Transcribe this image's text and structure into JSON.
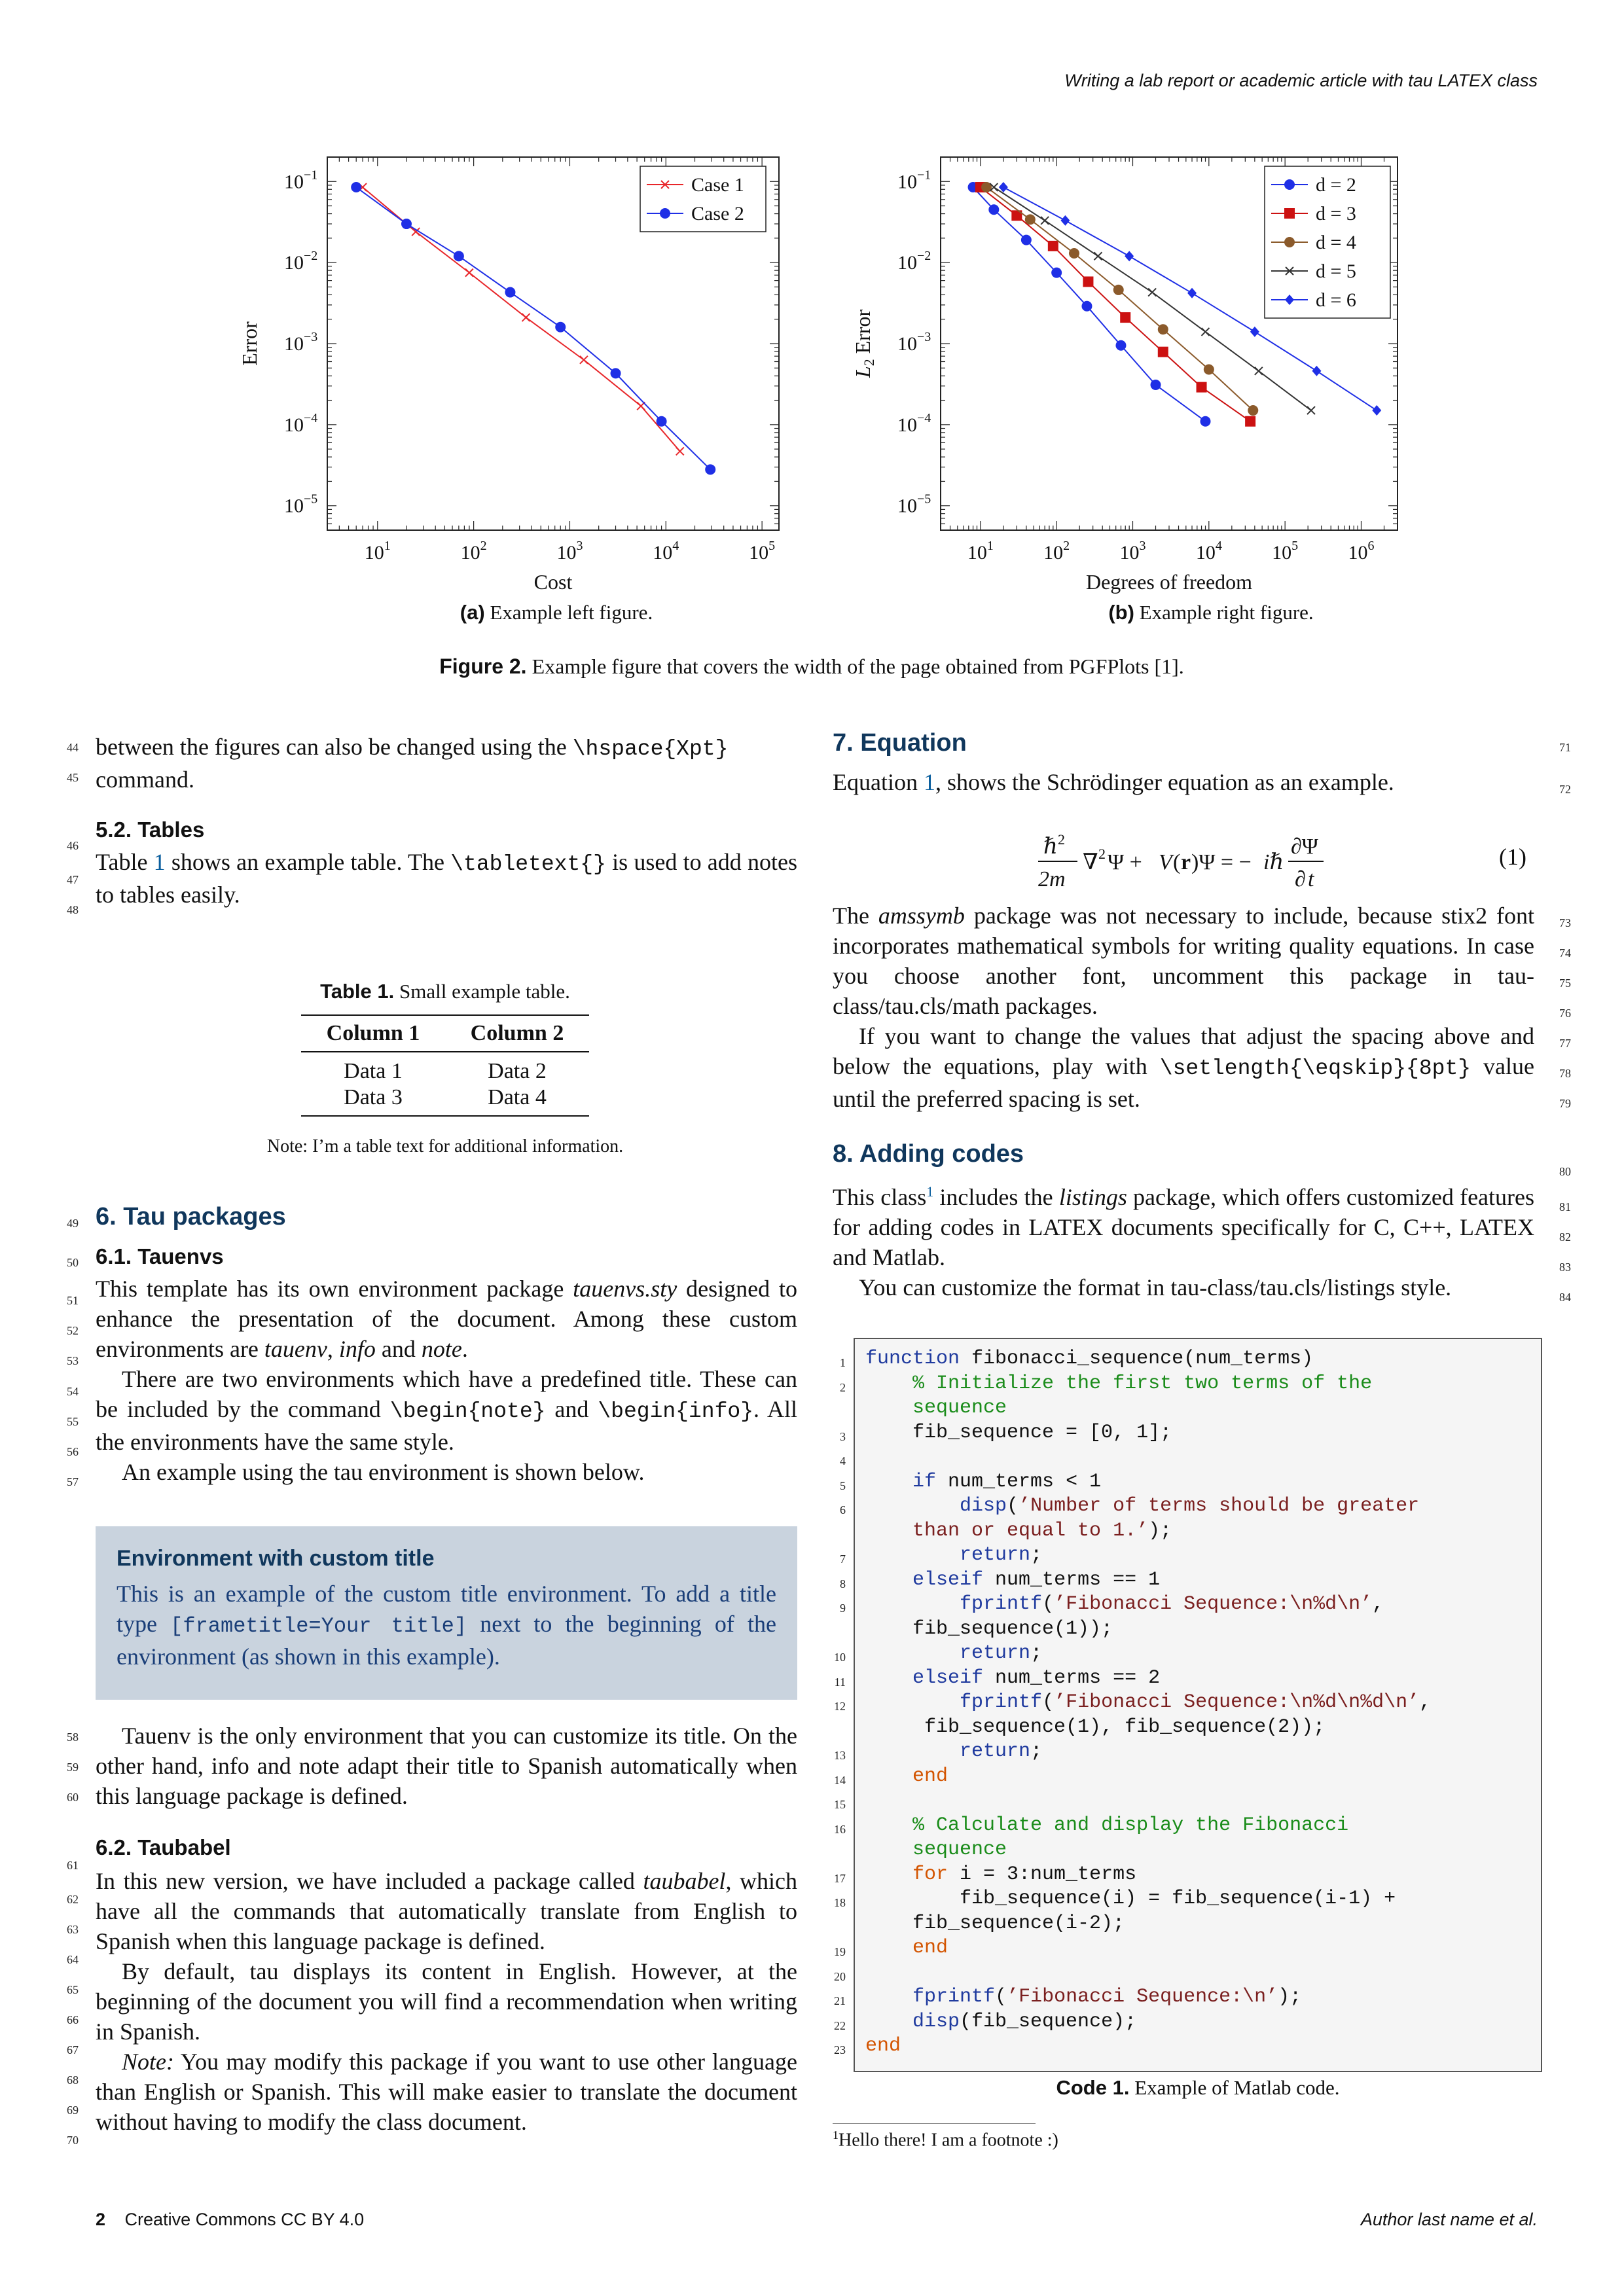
{
  "header": {
    "running_title": "Writing a lab report or academic article with tau LATEX class"
  },
  "figure": {
    "left": {
      "ylabel": "Error",
      "xlabel": "Cost",
      "ytick_labels": [
        "10",
        "10",
        "10",
        "10",
        "10"
      ],
      "ytick_exps": [
        "−1",
        "−2",
        "−3",
        "−4",
        "−5"
      ],
      "xtick_labels": [
        "10",
        "10",
        "10",
        "10",
        "10"
      ],
      "xtick_exps": [
        "1",
        "2",
        "3",
        "4",
        "5"
      ],
      "legend": [
        "Case 1",
        "Case 2"
      ],
      "caption_tag": "(a)",
      "caption": "Example left figure."
    },
    "right": {
      "ylabel": "L",
      "ylabel_sub": "2",
      "ylabel_rest": " Error",
      "xlabel": "Degrees of freedom",
      "ytick_labels": [
        "10",
        "10",
        "10",
        "10",
        "10"
      ],
      "ytick_exps": [
        "−1",
        "−2",
        "−3",
        "−4",
        "−5"
      ],
      "xtick_labels": [
        "10",
        "10",
        "10",
        "10",
        "10",
        "10"
      ],
      "xtick_exps": [
        "1",
        "2",
        "3",
        "4",
        "5",
        "6"
      ],
      "legend": [
        "d = 2",
        "d = 3",
        "d = 4",
        "d = 5",
        "d = 6"
      ],
      "caption_tag": "(b)",
      "caption": "Example right figure."
    },
    "caption_tag": "Figure 2.",
    "caption": "Example figure that covers the width of the page obtained from PGFPlots [1].",
    "colors": {
      "red": "#e8262a",
      "blue": "#1f2fe6",
      "brown": "#8b5a2b",
      "black": "#333333",
      "darkred": "#cc1111"
    }
  },
  "chart_data": [
    {
      "type": "line",
      "title": "",
      "xlabel": "Cost",
      "ylabel": "Error",
      "xscale": "log",
      "yscale": "log",
      "xlim": [
        3,
        150000
      ],
      "ylim": [
        5e-06,
        0.2
      ],
      "legend_position": "top-right",
      "series": [
        {
          "name": "Case 1",
          "marker": "x",
          "color": "#e8262a",
          "x": [
            7,
            25,
            90,
            350,
            1400,
            5500,
            14000
          ],
          "y": [
            0.085,
            0.024,
            0.0075,
            0.0021,
            0.00063,
            0.00017,
            4.7e-05
          ]
        },
        {
          "name": "Case 2",
          "marker": "dot",
          "color": "#1f2fe6",
          "x": [
            6,
            20,
            70,
            240,
            800,
            3000,
            9000,
            29000
          ],
          "y": [
            0.085,
            0.03,
            0.012,
            0.0043,
            0.0016,
            0.00043,
            0.00011,
            2.8e-05
          ]
        }
      ]
    },
    {
      "type": "line",
      "title": "",
      "xlabel": "Degrees of freedom",
      "ylabel": "L2 Error",
      "xscale": "log",
      "yscale": "log",
      "xlim": [
        3,
        3000000
      ],
      "ylim": [
        5e-06,
        0.2
      ],
      "legend_position": "top-right",
      "series": [
        {
          "name": "d = 2",
          "marker": "dot",
          "color": "#1f2fe6",
          "x": [
            8,
            15,
            40,
            100,
            250,
            700,
            2000,
            9000
          ],
          "y": [
            0.085,
            0.045,
            0.019,
            0.0075,
            0.0029,
            0.00095,
            0.00031,
            0.00011
          ]
        },
        {
          "name": "d = 3",
          "marker": "square",
          "color": "#cc1111",
          "x": [
            10,
            30,
            90,
            260,
            800,
            2500,
            8000,
            35000
          ],
          "y": [
            0.085,
            0.038,
            0.016,
            0.0058,
            0.0021,
            0.00079,
            0.00029,
            0.00011
          ]
        },
        {
          "name": "d = 4",
          "marker": "dot",
          "color": "#8b5a2b",
          "x": [
            12,
            45,
            170,
            650,
            2500,
            10000,
            38000
          ],
          "y": [
            0.085,
            0.034,
            0.013,
            0.0046,
            0.0015,
            0.00048,
            0.00015
          ]
        },
        {
          "name": "d = 5",
          "marker": "x",
          "color": "#333333",
          "x": [
            15,
            70,
            350,
            1800,
            9000,
            45000,
            220000
          ],
          "y": [
            0.085,
            0.033,
            0.012,
            0.0043,
            0.0014,
            0.00046,
            0.00015
          ]
        },
        {
          "name": "d = 6",
          "marker": "diamond",
          "color": "#1f2fe6",
          "x": [
            20,
            130,
            900,
            6000,
            40000,
            260000,
            1600000
          ],
          "y": [
            0.085,
            0.033,
            0.012,
            0.0042,
            0.0014,
            0.00046,
            0.00015
          ]
        }
      ]
    }
  ],
  "left_col": {
    "p1a": "between the figures can also be changed using the ",
    "p1code": "\\hspace{Xpt}",
    "p1b": "command.",
    "sec52": "5.2. Tables",
    "p2a": "Table ",
    "p2ref": "1",
    "p2b": " shows an example table. The ",
    "p2code": "\\tabletext{}",
    "p2c": " is used to add notes to tables easily.",
    "table": {
      "caption_tag": "Table 1.",
      "caption": "Small example table.",
      "headers": [
        "Column 1",
        "Column 2"
      ],
      "rows": [
        [
          "Data 1",
          "Data 2"
        ],
        [
          "Data 3",
          "Data 4"
        ]
      ],
      "note": "Note: I’m a table text for additional information."
    },
    "sec6": "6. Tau packages",
    "sec61": "6.1. Tauenvs",
    "p3a": "This template has its own environment package ",
    "p3i1": "tauenvs.sty",
    "p3b": " designed to enhance the presentation of the document. Among these custom environments are ",
    "p3i2": "tauenv",
    "p3c": ", ",
    "p3i3": "info",
    "p3d": " and ",
    "p3i4": "note",
    "p3e": ".",
    "p4a": "There are two environments which have a predefined title. These can be included by the command ",
    "p4code1": "\\begin{note}",
    "p4b": " and ",
    "p4code2": "\\begin{info}",
    "p4c": ". All the environments have the same style.",
    "p5": "An example using the tau environment is shown below.",
    "box": {
      "title": "Environment with custom title",
      "t1": "This is an example of the custom title environment. To add a title type ",
      "code": "[frametitle=Your title]",
      "t2": " next to the beginning of the environment (as shown in this example)."
    },
    "p6": "Tauenv is the only environment that you can customize its title. On the other hand, info and note adapt their title to Spanish automatically when this language package is defined.",
    "sec62": "6.2. Taubabel",
    "p7a": "In this new version, we have included a package called ",
    "p7i": "taubabel",
    "p7b": ", which have all the commands that automatically translate from English to Spanish when this language package is defined.",
    "p8": "By default, tau displays its content in English. However, at the beginning of the document you will find a recommendation when writing in Spanish.",
    "p9i": "Note:",
    "p9": " You may modify this package if you want to use other language than English or Spanish. This will make easier to translate the document without having to modify the class document."
  },
  "right_col": {
    "sec7": "7. Equation",
    "p1a": "Equation ",
    "p1ref": "1",
    "p1b": ", shows the Schrödinger equation as an example.",
    "eq_number": "(1)",
    "p2a": "The ",
    "p2i": "amssymb",
    "p2b": " package was not necessary to include, because stix2 font incorporates mathematical symbols for writing quality equations. In case you choose another font, uncomment this package in tau-class/tau.cls/math packages.",
    "p3a": "If you want to change the values that adjust the spacing above and below the equations, play with ",
    "p3code": "\\setlength{\\eqskip}{8pt}",
    "p3b": " value until the preferred spacing is set.",
    "sec8": "8. Adding codes",
    "p4a": "This class",
    "p4sup": "1",
    "p4b": " includes the ",
    "p4i": "listings",
    "p4c": " package, which offers customized features for adding codes in LATEX documents specifically for C, C++, LATEX and Matlab.",
    "p5": "You can customize the format in tau-class/tau.cls/listings style.",
    "code_caption_tag": "Code 1.",
    "code_caption": "Example of Matlab code.",
    "footnote_mark": "1",
    "footnote": "Hello there! I am a footnote :)"
  },
  "line_numbers": {
    "left": [
      "44",
      "45",
      "46",
      "47",
      "48",
      "49",
      "50",
      "51",
      "52",
      "53",
      "54",
      "55",
      "56",
      "57",
      "58",
      "59",
      "60",
      "61",
      "62",
      "63",
      "64",
      "65",
      "66",
      "67",
      "68",
      "69",
      "70"
    ],
    "right": [
      "71",
      "72",
      "73",
      "74",
      "75",
      "76",
      "77",
      "78",
      "79",
      "80",
      "81",
      "82",
      "83",
      "84"
    ]
  },
  "code_lines": [
    "1",
    "2",
    "3",
    "4",
    "5",
    "6",
    "7",
    "8",
    "9",
    "10",
    "11",
    "12",
    "13",
    "14",
    "15",
    "16",
    "17",
    "18",
    "19",
    "20",
    "21",
    "22",
    "23"
  ],
  "footer": {
    "page": "2",
    "license": "Creative Commons CC BY 4.0",
    "author": "Author last name et al."
  }
}
